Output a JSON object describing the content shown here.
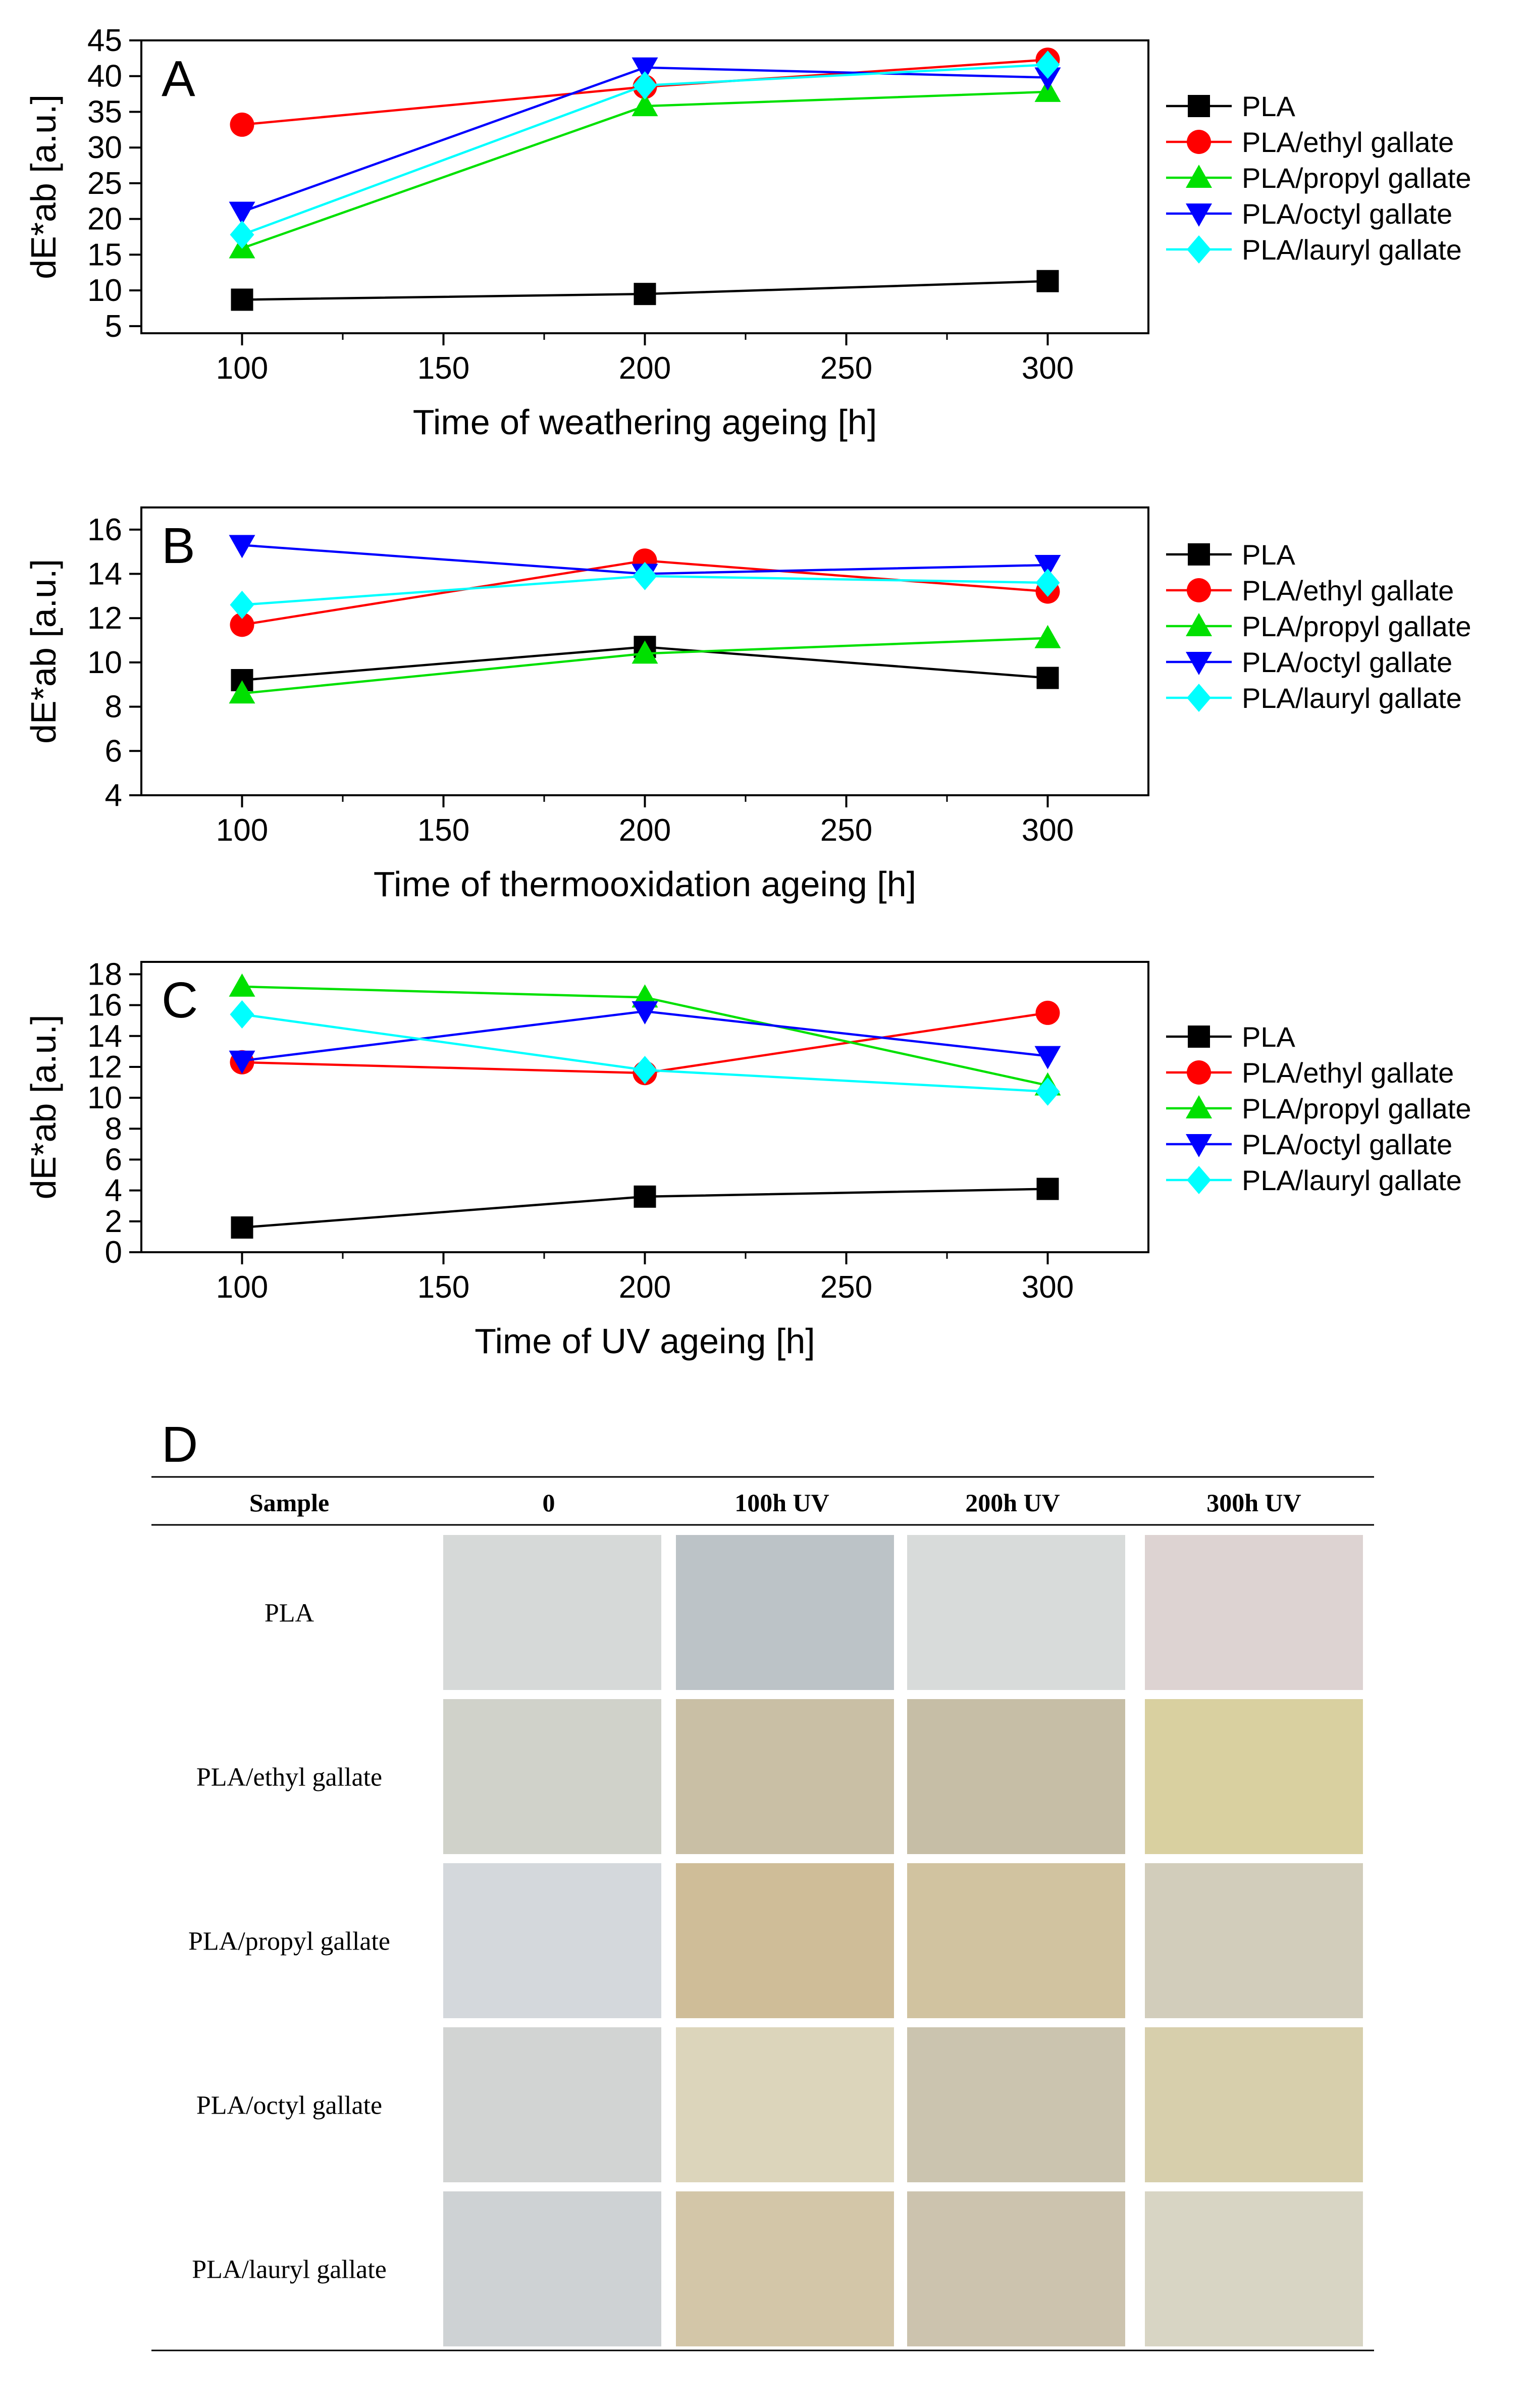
{
  "chart_data": [
    {
      "type": "line",
      "panel_label": "A",
      "xlabel": "Time of weathering ageing [h]",
      "ylabel": "dE*ab [a.u.]",
      "x": [
        100,
        200,
        300
      ],
      "xlim": [
        75,
        325
      ],
      "ylim": [
        4,
        45
      ],
      "xticks": [
        100,
        150,
        200,
        250,
        300
      ],
      "yticks": [
        5,
        10,
        15,
        20,
        25,
        30,
        35,
        40,
        45
      ],
      "legend_position": "right",
      "series": [
        {
          "name": "PLA",
          "values": [
            8.7,
            9.5,
            11.3
          ],
          "color": "#000000",
          "marker": "square"
        },
        {
          "name": "PLA/ethyl gallate",
          "values": [
            33.2,
            38.5,
            42.3
          ],
          "color": "#ff0000",
          "marker": "circle"
        },
        {
          "name": "PLA/propyl gallate",
          "values": [
            15.9,
            35.8,
            37.8
          ],
          "color": "#00e000",
          "marker": "triangle-up"
        },
        {
          "name": "PLA/octyl gallate",
          "values": [
            21.0,
            41.2,
            39.8
          ],
          "color": "#0000ff",
          "marker": "triangle-down"
        },
        {
          "name": "PLA/lauryl gallate",
          "values": [
            17.8,
            38.7,
            41.6
          ],
          "color": "#00ffff",
          "marker": "diamond"
        }
      ]
    },
    {
      "type": "line",
      "panel_label": "B",
      "xlabel": "Time of thermooxidation ageing [h]",
      "ylabel": "dE*ab [a.u.]",
      "x": [
        100,
        200,
        300
      ],
      "xlim": [
        75,
        325
      ],
      "ylim": [
        4,
        17
      ],
      "xticks": [
        100,
        150,
        200,
        250,
        300
      ],
      "yticks": [
        4,
        6,
        8,
        10,
        12,
        14,
        16
      ],
      "legend_position": "right",
      "series": [
        {
          "name": "PLA",
          "values": [
            9.2,
            10.7,
            9.3
          ],
          "color": "#000000",
          "marker": "square"
        },
        {
          "name": "PLA/ethyl gallate",
          "values": [
            11.7,
            14.6,
            13.2
          ],
          "color": "#ff0000",
          "marker": "circle"
        },
        {
          "name": "PLA/propyl gallate",
          "values": [
            8.6,
            10.4,
            11.1
          ],
          "color": "#00e000",
          "marker": "triangle-up"
        },
        {
          "name": "PLA/octyl gallate",
          "values": [
            15.3,
            14.0,
            14.4
          ],
          "color": "#0000ff",
          "marker": "triangle-down"
        },
        {
          "name": "PLA/lauryl gallate",
          "values": [
            12.6,
            13.9,
            13.6
          ],
          "color": "#00ffff",
          "marker": "diamond"
        }
      ]
    },
    {
      "type": "line",
      "panel_label": "C",
      "xlabel": "Time of UV ageing [h]",
      "ylabel": "dE*ab [a.u.]",
      "x": [
        100,
        200,
        300
      ],
      "xlim": [
        75,
        325
      ],
      "ylim": [
        0,
        18.8
      ],
      "xticks": [
        100,
        150,
        200,
        250,
        300
      ],
      "yticks": [
        0,
        2,
        4,
        6,
        8,
        10,
        12,
        14,
        16,
        18
      ],
      "legend_position": "right",
      "series": [
        {
          "name": "PLA",
          "values": [
            1.6,
            3.6,
            4.1
          ],
          "color": "#000000",
          "marker": "square"
        },
        {
          "name": "PLA/ethyl gallate",
          "values": [
            12.3,
            11.6,
            15.5
          ],
          "color": "#ff0000",
          "marker": "circle"
        },
        {
          "name": "PLA/propyl gallate",
          "values": [
            17.2,
            16.5,
            10.8
          ],
          "color": "#00e000",
          "marker": "triangle-up"
        },
        {
          "name": "PLA/octyl gallate",
          "values": [
            12.4,
            15.6,
            12.7
          ],
          "color": "#0000ff",
          "marker": "triangle-down"
        },
        {
          "name": "PLA/lauryl gallate",
          "values": [
            15.4,
            11.8,
            10.4
          ],
          "color": "#00ffff",
          "marker": "diamond"
        }
      ]
    }
  ],
  "table_d": {
    "label": "D",
    "headers": [
      "Sample",
      "0",
      "100h UV",
      "200h UV",
      "300h UV"
    ],
    "rows": [
      {
        "name": "PLA",
        "colors": [
          "#d6d9d8",
          "#bcc3c7",
          "#d8dbda",
          "#ddd3d2"
        ]
      },
      {
        "name": "PLA/ethyl gallate",
        "colors": [
          "#d0d2ca",
          "#c9bfa5",
          "#c6bea6",
          "#d9d0a0"
        ]
      },
      {
        "name": "PLA/propyl gallate",
        "colors": [
          "#d4d8dc",
          "#cfbd98",
          "#d1c3a0",
          "#d2cdbb"
        ]
      },
      {
        "name": "PLA/octyl gallate",
        "colors": [
          "#d2d4d3",
          "#dcd5bb",
          "#cbc4af",
          "#d7cfac"
        ]
      },
      {
        "name": "PLA/lauryl gallate",
        "colors": [
          "#ced2d4",
          "#d3c6a8",
          "#ccc3ae",
          "#d8d5c4"
        ]
      }
    ]
  }
}
